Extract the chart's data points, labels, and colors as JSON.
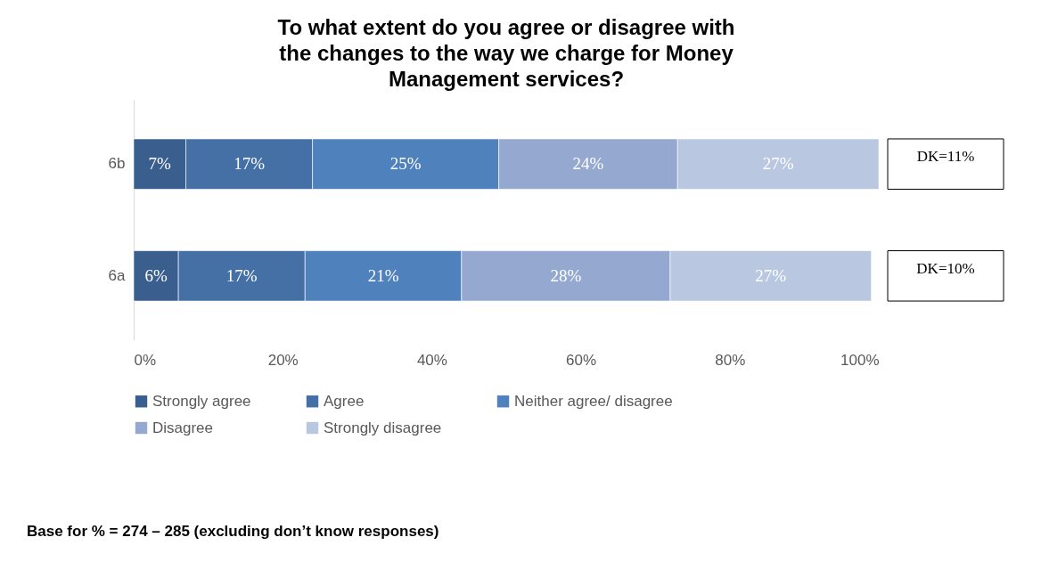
{
  "chart_data": {
    "type": "bar",
    "orientation": "horizontal",
    "stacked": true,
    "title": "To what extent do you agree or disagree with the changes to the way we charge for Money Management services?",
    "categories": [
      "6b",
      "6a"
    ],
    "series": [
      {
        "name": "Strongly agree",
        "color": "#3a5f8f",
        "values": [
          7,
          6
        ]
      },
      {
        "name": "Agree",
        "color": "#4470a6",
        "values": [
          17,
          17
        ]
      },
      {
        "name": "Neither agree/ disagree",
        "color": "#4f81bd",
        "values": [
          25,
          21
        ]
      },
      {
        "name": "Disagree",
        "color": "#95a9d0",
        "values": [
          24,
          28
        ]
      },
      {
        "name": "Strongly disagree",
        "color": "#bac7e0",
        "values": [
          27,
          27
        ]
      }
    ],
    "xlim": [
      0,
      100
    ],
    "xticks": [
      {
        "value": 0,
        "label": "0%"
      },
      {
        "value": 20,
        "label": "20%"
      },
      {
        "value": 40,
        "label": "40%"
      },
      {
        "value": 60,
        "label": "60%"
      },
      {
        "value": 80,
        "label": "80%"
      },
      {
        "value": 100,
        "label": "100%"
      }
    ],
    "value_labels": [
      [
        "7%",
        "6%"
      ],
      [
        "17%",
        "17%"
      ],
      [
        "25%",
        "21%"
      ],
      [
        "24%",
        "28%"
      ],
      [
        "27%",
        "27%"
      ]
    ],
    "annotations": [
      "DK=11%",
      "DK=10%",
      "Base for % = 274 – 285 (excluding don’t know responses)"
    ],
    "legend": "bottom",
    "grid": false
  }
}
